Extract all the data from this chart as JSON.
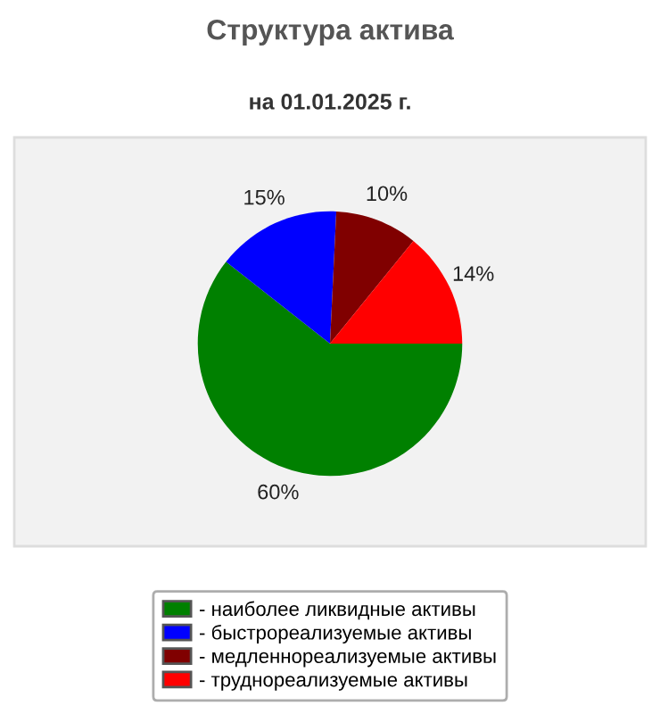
{
  "chart_data": {
    "type": "pie",
    "title": "Структура актива",
    "subtitle": "на 01.01.2025 г.",
    "categories": [
      "- наиболее ликвидные активы",
      "- быстрореализуемые активы",
      "- медленнореализуемые активы",
      "- труднореализуемые активы"
    ],
    "values": [
      60,
      15,
      10,
      14
    ],
    "value_labels": [
      "60%",
      "15%",
      "10%",
      "14%"
    ],
    "colors": [
      "#008000",
      "#0000ff",
      "#800000",
      "#ff0000"
    ],
    "legend": "bottom"
  }
}
